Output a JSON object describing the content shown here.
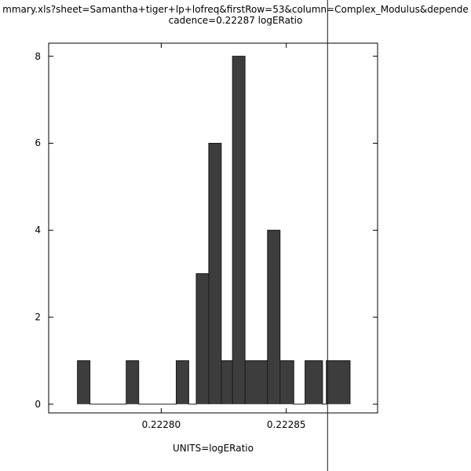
{
  "title": {
    "line1": "mmary.xls?sheet=Samantha+tiger+lp+lofreq&firstRow=53&column=Complex_Modulus&depende",
    "line2": "cadence=0.22287 logERatio"
  },
  "chart_data": {
    "type": "bar",
    "subtype": "histogram",
    "title": "cadence=0.22287 logERatio",
    "xlabel": "UNITS=logERatio",
    "ylabel": "",
    "xlim": [
      0.222755,
      0.2228865
    ],
    "ylim": [
      -0.2,
      8.3
    ],
    "grid": false,
    "xticks": [
      {
        "value": 0.2228,
        "label": "0.22280"
      },
      {
        "value": 0.22285,
        "label": "0.22285"
      }
    ],
    "yticks": [
      {
        "value": 0,
        "label": "0"
      },
      {
        "value": 2,
        "label": "2"
      },
      {
        "value": 4,
        "label": "4"
      },
      {
        "value": 6,
        "label": "6"
      },
      {
        "value": 8,
        "label": "8"
      }
    ],
    "bins": [
      {
        "x0": 0.2227665,
        "x1": 0.2227715,
        "count": 1
      },
      {
        "x0": 0.222786,
        "x1": 0.222791,
        "count": 1
      },
      {
        "x0": 0.222806,
        "x1": 0.222811,
        "count": 1
      },
      {
        "x0": 0.222814,
        "x1": 0.222819,
        "count": 3
      },
      {
        "x0": 0.222819,
        "x1": 0.222824,
        "count": 6
      },
      {
        "x0": 0.222824,
        "x1": 0.2228285,
        "count": 1
      },
      {
        "x0": 0.2228285,
        "x1": 0.2228335,
        "count": 8
      },
      {
        "x0": 0.2228335,
        "x1": 0.2228425,
        "count": 1
      },
      {
        "x0": 0.2228425,
        "x1": 0.2228475,
        "count": 4
      },
      {
        "x0": 0.2228475,
        "x1": 0.222853,
        "count": 1
      },
      {
        "x0": 0.2228575,
        "x1": 0.2228645,
        "count": 1
      },
      {
        "x0": 0.222866,
        "x1": 0.2228755,
        "count": 1
      }
    ],
    "marker_line": {
      "x": 0.2228665
    },
    "bar_color": "#3d3d3d",
    "outline_color": "#1a1a1a",
    "axis_color": "#000000"
  }
}
